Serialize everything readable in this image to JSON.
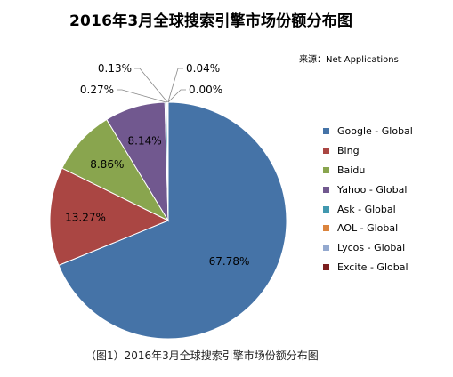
{
  "title": "2016年3月全球搜索引擎市场份额分布图",
  "source": "来源：Net Applications",
  "caption": "（图1）2016年3月全球搜索引擎市场份额分布图",
  "chart_data": {
    "type": "pie",
    "title": "2016年3月全球搜索引擎市场份额分布图",
    "legend_position": "right",
    "slices": [
      {
        "label": "Google - Global",
        "value": 67.78,
        "data_label": "67.78%",
        "color": "#4573a7"
      },
      {
        "label": "Bing",
        "value": 13.27,
        "data_label": "13.27%",
        "color": "#aa4643"
      },
      {
        "label": "Baidu",
        "value": 8.86,
        "data_label": "8.86%",
        "color": "#89a54e"
      },
      {
        "label": "Yahoo - Global",
        "value": 8.14,
        "data_label": "8.14%",
        "color": "#71588f"
      },
      {
        "label": "Ask - Global",
        "value": 0.27,
        "data_label": "0.27%",
        "color": "#4198af"
      },
      {
        "label": "AOL - Global",
        "value": 0.13,
        "data_label": "0.13%",
        "color": "#db843d"
      },
      {
        "label": "Lycos - Global",
        "value": 0.04,
        "data_label": "0.04%",
        "color": "#93a9cf"
      },
      {
        "label": "Excite - Global",
        "value": 0.0,
        "data_label": "0.00%",
        "color": "#7c1f1f"
      }
    ]
  }
}
